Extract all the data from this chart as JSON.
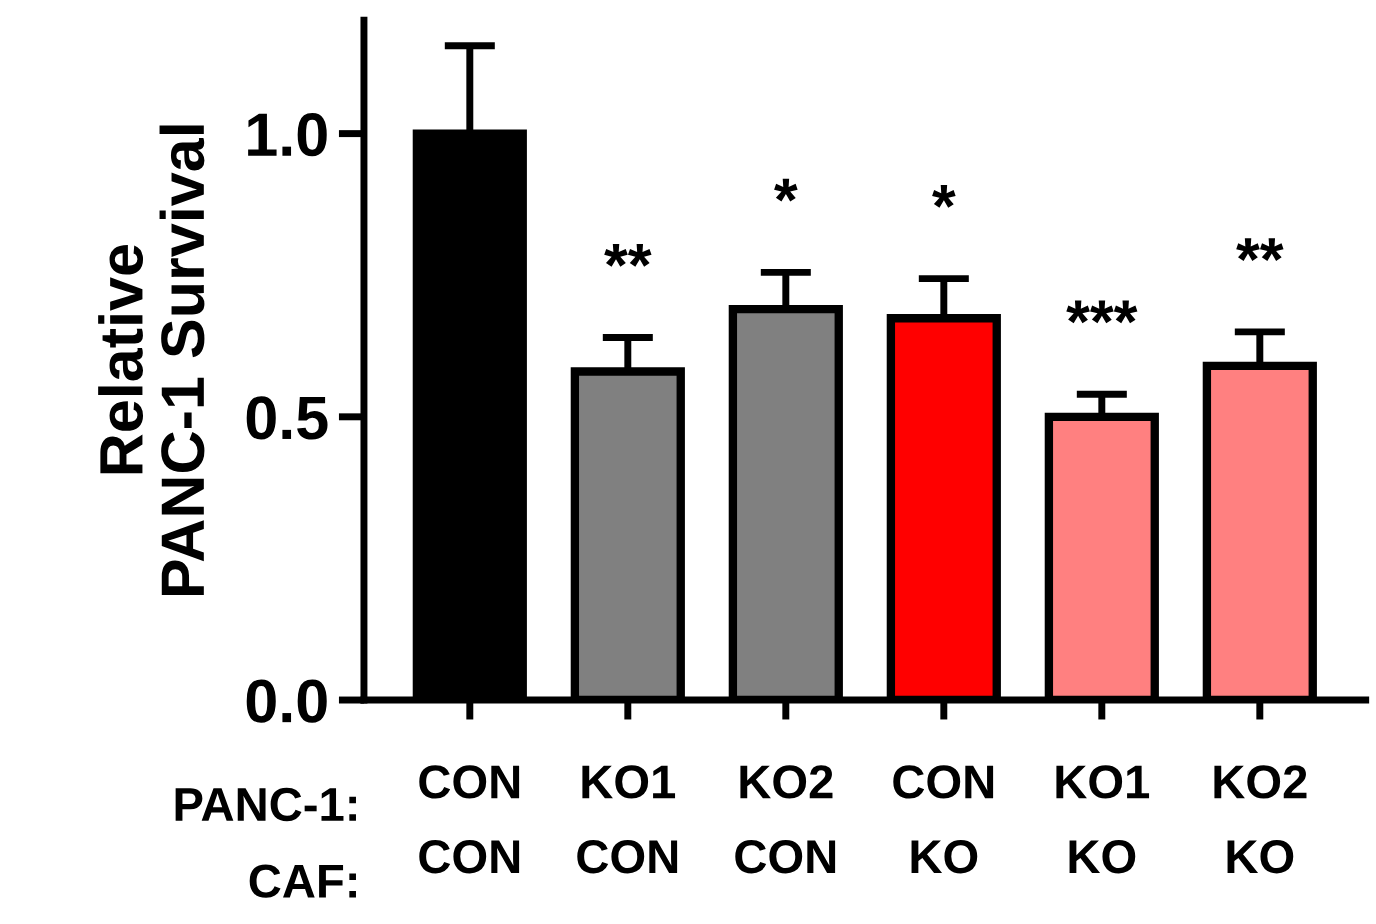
{
  "chart_data": {
    "type": "bar",
    "ylabel": "Relative\nPANC-1 Survival",
    "categories": [
      "CON\nCON",
      "KO1\nCON",
      "KO2\nCON",
      "CON\nKO",
      "KO1\nKO",
      "KO2\nKO"
    ],
    "values": [
      1.0,
      0.58,
      0.69,
      0.674,
      0.5,
      0.59
    ],
    "errors": [
      0.155,
      0.06,
      0.065,
      0.07,
      0.04,
      0.06
    ],
    "colors": [
      "#000000",
      "#808080",
      "#808080",
      "#ff0000",
      "#ff8080",
      "#ff8080"
    ],
    "ylim": [
      0,
      1.2
    ],
    "yticks": [
      {
        "value": 0,
        "label": "0.0"
      },
      {
        "value": 0.5,
        "label": "0.5"
      },
      {
        "value": 1.0,
        "label": "1.0"
      }
    ],
    "grid": false,
    "legend": false,
    "annotations": [
      "PANC-1:",
      "CAF:",
      "**",
      "*",
      "*",
      "***",
      "**"
    ]
  }
}
